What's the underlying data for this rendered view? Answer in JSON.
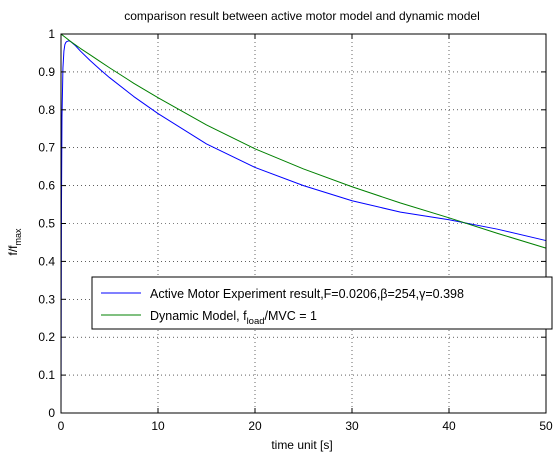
{
  "chart_data": {
    "type": "line",
    "title": "comparison result between active motor model and dynamic model",
    "xlabel": "time unit [s]",
    "ylabel": {
      "main": "f/f",
      "sub": "max"
    },
    "xlim": [
      0,
      50
    ],
    "ylim": [
      0,
      1
    ],
    "xticks": [
      0,
      10,
      20,
      30,
      40,
      50
    ],
    "yticks": [
      0,
      0.1,
      0.2,
      0.3,
      0.4,
      0.5,
      0.6,
      0.7,
      0.8,
      0.9,
      1
    ],
    "grid": true,
    "legend_placement": "center-left",
    "series": [
      {
        "name": "Active Motor Experiment result,F=0.0206,β=254,γ=0.398",
        "legend": {
          "pre": "Active Motor Experiment result,F=0.0206,β=254,γ=0.398"
        },
        "color": "#0000ff",
        "x": [
          0,
          0.05,
          0.1,
          0.2,
          0.3,
          0.4,
          0.5,
          0.6,
          0.8,
          1.0,
          1.5,
          2,
          3,
          4,
          5,
          7.5,
          10,
          15,
          20,
          25,
          30,
          35,
          40,
          45,
          50
        ],
        "y": [
          0,
          0.55,
          0.78,
          0.91,
          0.955,
          0.972,
          0.978,
          0.98,
          0.982,
          0.98,
          0.969,
          0.955,
          0.93,
          0.907,
          0.885,
          0.835,
          0.79,
          0.71,
          0.648,
          0.6,
          0.56,
          0.53,
          0.51,
          0.485,
          0.455
        ]
      },
      {
        "name": "Dynamic Model, f_load/MVC = 1",
        "legend": {
          "pre": "Dynamic Model, f",
          "sub": "load",
          "post": "/MVC = 1"
        },
        "color": "#008000",
        "x": [
          0,
          0.5,
          1,
          2,
          3,
          4,
          5,
          7.5,
          10,
          15,
          20,
          25,
          30,
          35,
          40,
          45,
          50
        ],
        "y": [
          1.0,
          0.99,
          0.98,
          0.962,
          0.945,
          0.928,
          0.911,
          0.87,
          0.832,
          0.76,
          0.697,
          0.644,
          0.597,
          0.554,
          0.515,
          0.474,
          0.435
        ]
      }
    ]
  }
}
